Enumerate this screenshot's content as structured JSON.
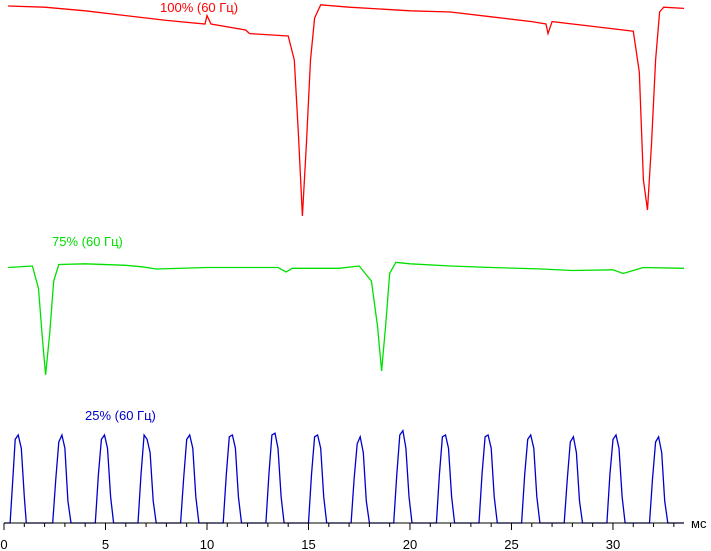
{
  "chart_data": {
    "type": "line",
    "xlabel": "мс",
    "xlim": [
      0,
      33.5
    ],
    "xticks": [
      0,
      5,
      10,
      15,
      20,
      25,
      30
    ],
    "xtick_labels": [
      "0",
      "5",
      "10",
      "15",
      "20",
      "25",
      "30"
    ],
    "series": [
      {
        "name": "100% (60 Гц)",
        "color": "#ff0000",
        "points": [
          [
            0.2,
            0.15
          ],
          [
            2,
            0.14
          ],
          [
            4,
            0.11
          ],
          [
            6,
            0.07
          ],
          [
            8,
            0.03
          ],
          [
            9.9,
            0.0
          ],
          [
            10,
            0.07
          ],
          [
            10.2,
            0.0
          ],
          [
            11.9,
            -0.05
          ],
          [
            12.1,
            -0.08
          ],
          [
            14,
            -0.1
          ],
          [
            14.3,
            -0.3
          ],
          [
            14.5,
            -0.9
          ],
          [
            14.7,
            -1.6
          ],
          [
            14.9,
            -1.0
          ],
          [
            15.1,
            -0.3
          ],
          [
            15.3,
            0.05
          ],
          [
            15.6,
            0.16
          ],
          [
            17,
            0.14
          ],
          [
            20,
            0.11
          ],
          [
            22,
            0.1
          ],
          [
            24,
            0.06
          ],
          [
            26,
            0.02
          ],
          [
            26.7,
            0.0
          ],
          [
            26.8,
            -0.08
          ],
          [
            27,
            0.02
          ],
          [
            29,
            -0.02
          ],
          [
            31,
            -0.06
          ],
          [
            31.3,
            -0.4
          ],
          [
            31.5,
            -1.3
          ],
          [
            31.7,
            -1.55
          ],
          [
            31.9,
            -1.0
          ],
          [
            32.1,
            -0.3
          ],
          [
            32.3,
            0.1
          ],
          [
            32.5,
            0.14
          ],
          [
            33.5,
            0.13
          ]
        ]
      },
      {
        "name": "75% (60 Гц)",
        "color": "#00e000",
        "points": [
          [
            0.2,
            -0.02
          ],
          [
            1.4,
            0.0
          ],
          [
            1.7,
            -0.3
          ],
          [
            1.9,
            -1.0
          ],
          [
            2.05,
            -1.45
          ],
          [
            2.25,
            -0.9
          ],
          [
            2.45,
            -0.2
          ],
          [
            2.7,
            0.02
          ],
          [
            4,
            0.03
          ],
          [
            6,
            0.01
          ],
          [
            6.8,
            -0.01
          ],
          [
            7.5,
            -0.04
          ],
          [
            10,
            -0.02
          ],
          [
            13.5,
            -0.02
          ],
          [
            13.9,
            -0.08
          ],
          [
            14.2,
            -0.03
          ],
          [
            16.5,
            -0.03
          ],
          [
            17.5,
            0.0
          ],
          [
            18.1,
            -0.2
          ],
          [
            18.4,
            -0.8
          ],
          [
            18.6,
            -1.4
          ],
          [
            18.8,
            -0.8
          ],
          [
            19.0,
            -0.1
          ],
          [
            19.3,
            0.05
          ],
          [
            20,
            0.03
          ],
          [
            22,
            0.0
          ],
          [
            24,
            -0.02
          ],
          [
            26.5,
            -0.04
          ],
          [
            28,
            -0.06
          ],
          [
            30,
            -0.05
          ],
          [
            30.5,
            -0.1
          ],
          [
            31.5,
            -0.02
          ],
          [
            33.5,
            -0.03
          ]
        ]
      },
      {
        "name": "25% (60 Гц)",
        "color": "#0000cc",
        "points": [
          [
            0,
            0
          ],
          [
            0.3,
            0
          ],
          [
            0.45,
            0.55
          ],
          [
            0.55,
            0.95
          ],
          [
            0.7,
            1.0
          ],
          [
            0.85,
            0.85
          ],
          [
            1.0,
            0.3
          ],
          [
            1.1,
            0
          ],
          [
            2.4,
            0
          ],
          [
            2.55,
            0.5
          ],
          [
            2.7,
            0.92
          ],
          [
            2.85,
            1.0
          ],
          [
            3.0,
            0.85
          ],
          [
            3.15,
            0.25
          ],
          [
            3.3,
            0
          ],
          [
            4.5,
            0
          ],
          [
            4.65,
            0.55
          ],
          [
            4.8,
            0.95
          ],
          [
            4.95,
            1.0
          ],
          [
            5.1,
            0.85
          ],
          [
            5.25,
            0.3
          ],
          [
            5.4,
            0
          ],
          [
            6.6,
            0
          ],
          [
            6.75,
            0.55
          ],
          [
            6.9,
            1.0
          ],
          [
            7.05,
            0.95
          ],
          [
            7.2,
            0.8
          ],
          [
            7.35,
            0.25
          ],
          [
            7.5,
            0
          ],
          [
            8.7,
            0
          ],
          [
            8.85,
            0.5
          ],
          [
            9.0,
            0.95
          ],
          [
            9.15,
            1.0
          ],
          [
            9.3,
            0.85
          ],
          [
            9.45,
            0.3
          ],
          [
            9.6,
            0
          ],
          [
            10.8,
            0
          ],
          [
            10.95,
            0.55
          ],
          [
            11.1,
            0.98
          ],
          [
            11.25,
            1.0
          ],
          [
            11.4,
            0.85
          ],
          [
            11.55,
            0.3
          ],
          [
            11.7,
            0
          ],
          [
            12.9,
            0
          ],
          [
            13.05,
            0.55
          ],
          [
            13.2,
            1.0
          ],
          [
            13.35,
            1.02
          ],
          [
            13.5,
            0.85
          ],
          [
            13.65,
            0.3
          ],
          [
            13.8,
            0
          ],
          [
            15.0,
            0
          ],
          [
            15.15,
            0.55
          ],
          [
            15.3,
            0.98
          ],
          [
            15.45,
            1.0
          ],
          [
            15.6,
            0.85
          ],
          [
            15.75,
            0.3
          ],
          [
            15.9,
            0
          ],
          [
            17.1,
            0
          ],
          [
            17.25,
            0.5
          ],
          [
            17.4,
            0.9
          ],
          [
            17.55,
            0.98
          ],
          [
            17.7,
            0.8
          ],
          [
            17.85,
            0.25
          ],
          [
            18.0,
            0
          ],
          [
            19.2,
            0
          ],
          [
            19.35,
            0.55
          ],
          [
            19.5,
            1.0
          ],
          [
            19.65,
            1.05
          ],
          [
            19.8,
            0.85
          ],
          [
            19.95,
            0.3
          ],
          [
            20.1,
            0
          ],
          [
            21.3,
            0
          ],
          [
            21.45,
            0.55
          ],
          [
            21.6,
            0.98
          ],
          [
            21.75,
            1.0
          ],
          [
            21.9,
            0.85
          ],
          [
            22.05,
            0.3
          ],
          [
            22.2,
            0
          ],
          [
            23.4,
            0
          ],
          [
            23.55,
            0.55
          ],
          [
            23.7,
            0.98
          ],
          [
            23.85,
            1.0
          ],
          [
            24.0,
            0.85
          ],
          [
            24.15,
            0.3
          ],
          [
            24.3,
            0
          ],
          [
            25.5,
            0
          ],
          [
            25.65,
            0.55
          ],
          [
            25.8,
            0.95
          ],
          [
            25.95,
            1.0
          ],
          [
            26.1,
            0.85
          ],
          [
            26.25,
            0.3
          ],
          [
            26.4,
            0
          ],
          [
            27.6,
            0
          ],
          [
            27.75,
            0.5
          ],
          [
            27.9,
            0.92
          ],
          [
            28.05,
            0.98
          ],
          [
            28.2,
            0.8
          ],
          [
            28.35,
            0.25
          ],
          [
            28.5,
            0
          ],
          [
            29.7,
            0
          ],
          [
            29.85,
            0.55
          ],
          [
            30.0,
            0.95
          ],
          [
            30.15,
            1.0
          ],
          [
            30.3,
            0.85
          ],
          [
            30.45,
            0.3
          ],
          [
            30.6,
            0
          ],
          [
            31.8,
            0
          ],
          [
            31.95,
            0.5
          ],
          [
            32.1,
            0.92
          ],
          [
            32.25,
            0.98
          ],
          [
            32.4,
            0.8
          ],
          [
            32.55,
            0.25
          ],
          [
            32.7,
            0
          ],
          [
            33.5,
            0
          ]
        ]
      }
    ],
    "grid": false,
    "legend": "inline labels above each trace"
  }
}
